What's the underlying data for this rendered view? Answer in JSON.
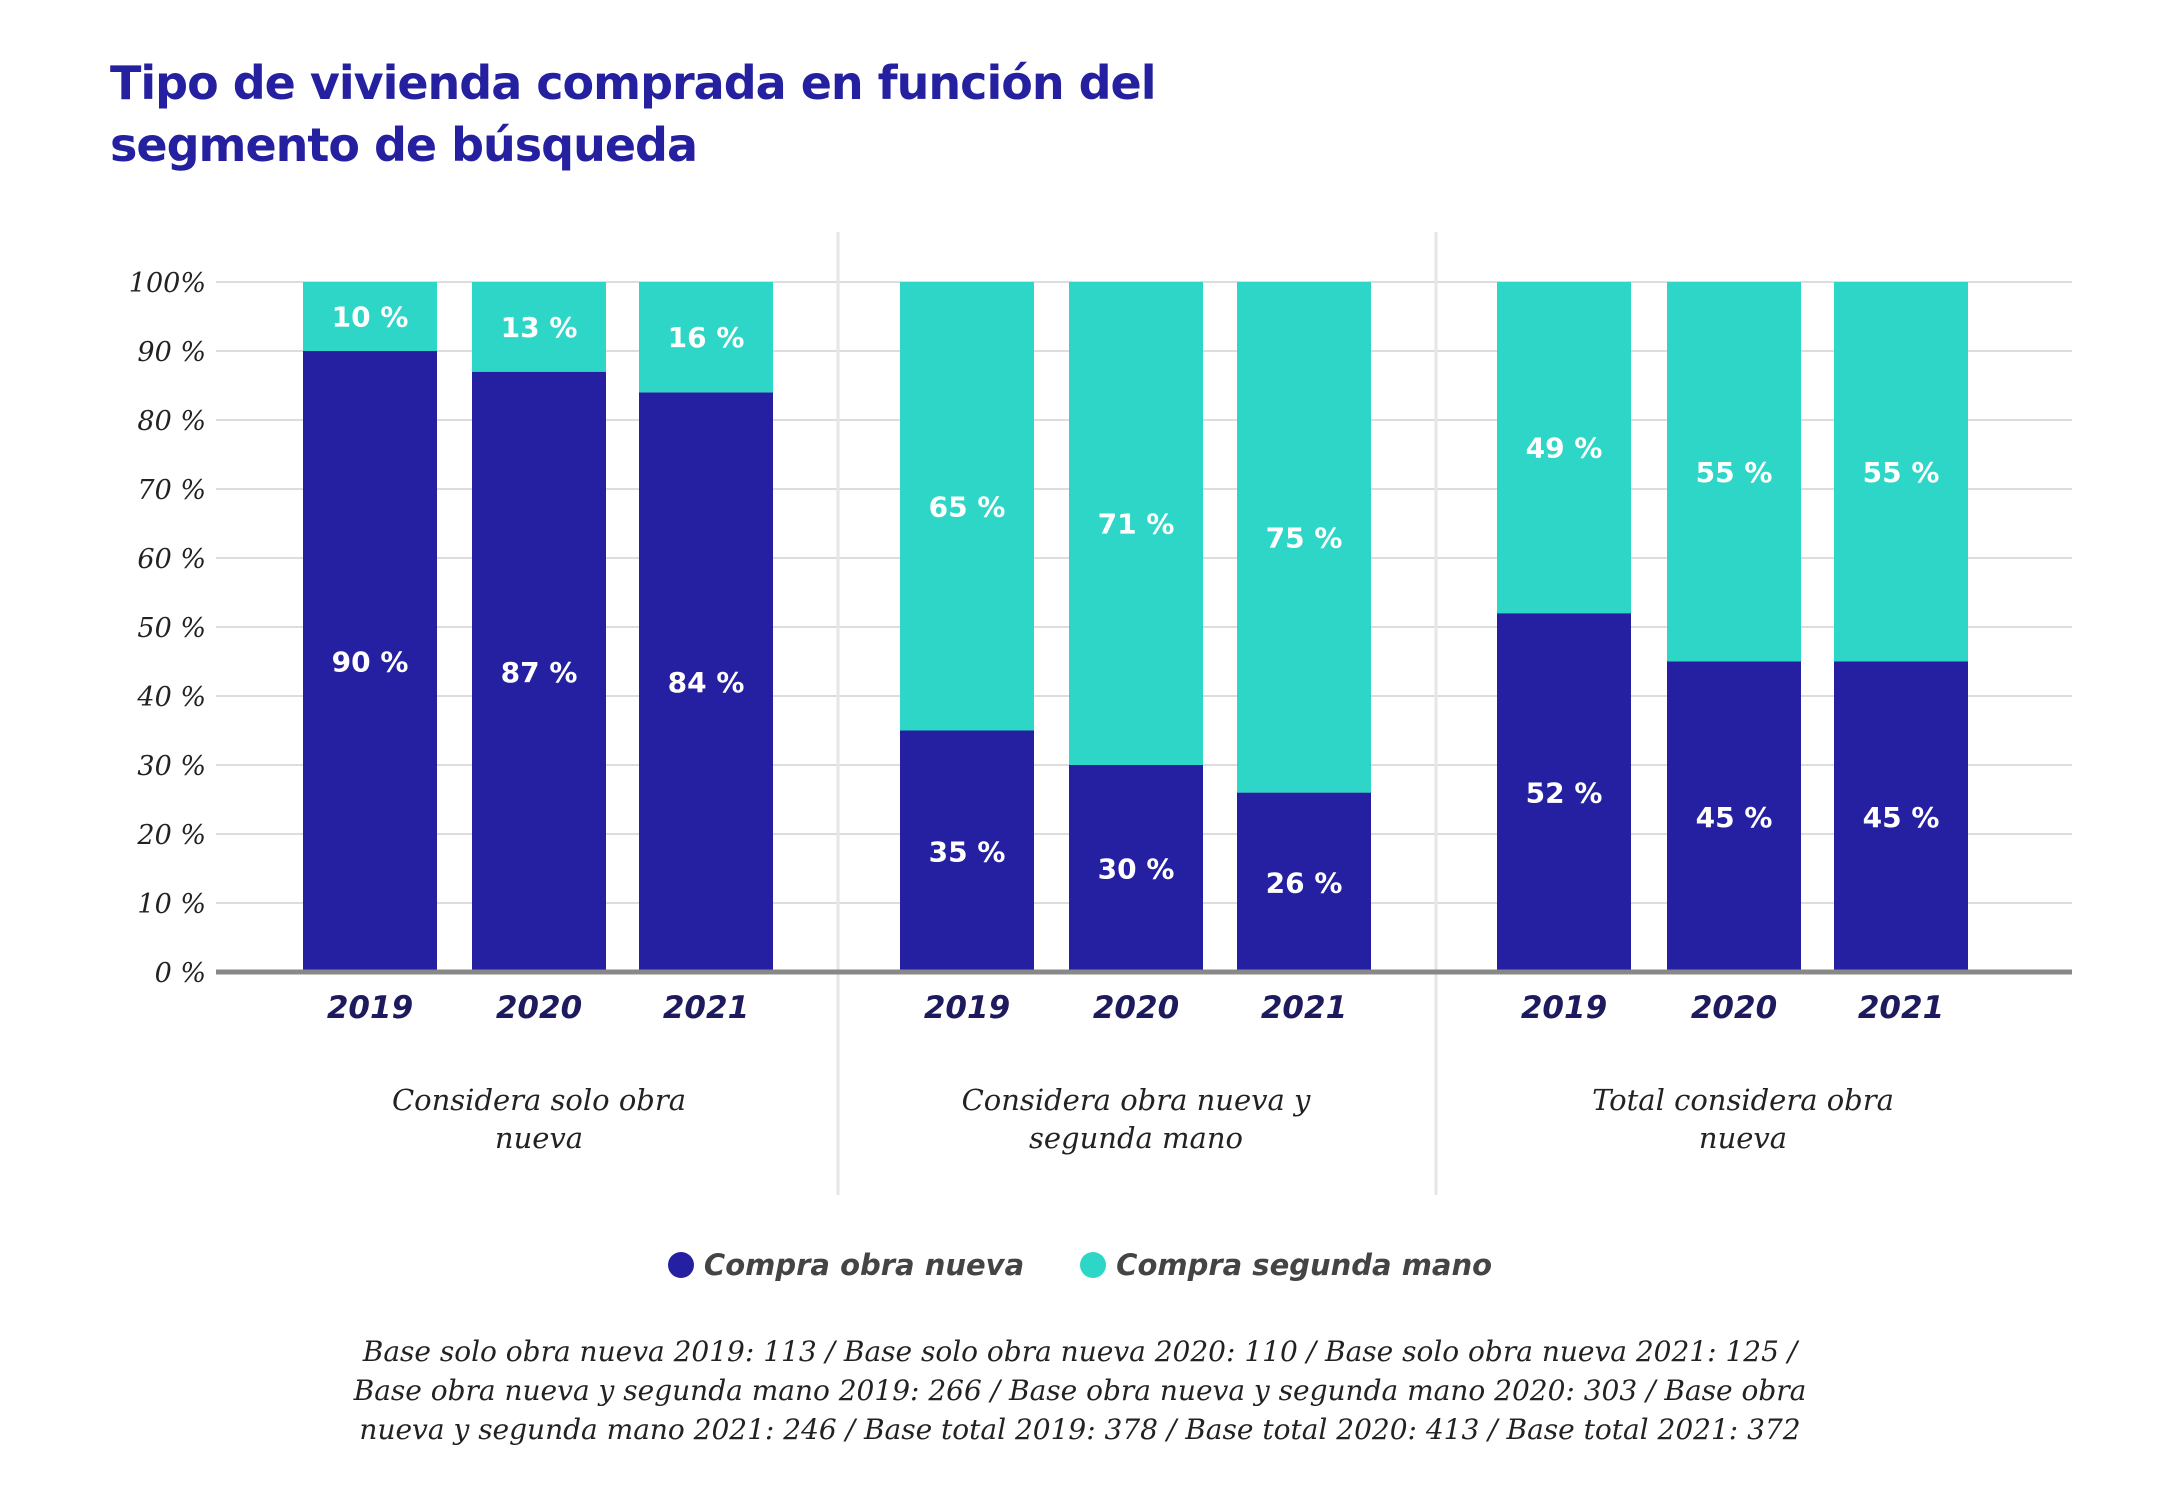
{
  "title": "Tipo de vivienda comprada en función del segmento de búsqueda",
  "colors": {
    "new": "#2520a2",
    "second": "#2dd6c6",
    "grid": "#dddddd",
    "axis": "#888888",
    "title": "#2420a0"
  },
  "legend": [
    {
      "label": "Compra obra nueva",
      "color": "#2520a2"
    },
    {
      "label": "Compra segunda mano",
      "color": "#2dd6c6"
    }
  ],
  "footnote": "Base solo obra nueva 2019: 113 / Base solo obra nueva 2020: 110 / Base solo obra nueva 2021: 125 / Base obra nueva y segunda mano 2019: 266 / Base obra nueva y segunda mano 2020: 303 / Base obra nueva y segunda mano 2021: 246 / Base total 2019: 378 / Base total 2020: 413 / Base total 2021: 372",
  "chart_data": {
    "type": "bar",
    "stacked": true,
    "ylim": [
      0,
      100
    ],
    "yticks": [
      "0 %",
      "10 %",
      "20 %",
      "30 %",
      "40 %",
      "50 %",
      "60 %",
      "70 %",
      "80 %",
      "90 %",
      "100%"
    ],
    "grid": true,
    "legend_position": "bottom",
    "groups": [
      {
        "label_lines": [
          "Considera solo obra",
          "nueva"
        ],
        "categories": [
          "2019",
          "2020",
          "2021"
        ],
        "series": [
          {
            "name": "Compra obra nueva",
            "values": [
              90,
              87,
              84
            ],
            "labels": [
              "90 %",
              "87 %",
              "84 %"
            ]
          },
          {
            "name": "Compra segunda mano",
            "values": [
              10,
              13,
              16
            ],
            "labels": [
              "10 %",
              "13 %",
              "16 %"
            ]
          }
        ]
      },
      {
        "label_lines": [
          "Considera obra nueva y",
          "segunda mano"
        ],
        "categories": [
          "2019",
          "2020",
          "2021"
        ],
        "series": [
          {
            "name": "Compra obra nueva",
            "values": [
              35,
              30,
              26
            ],
            "labels": [
              "35 %",
              "30 %",
              "26 %"
            ]
          },
          {
            "name": "Compra segunda mano",
            "values": [
              65,
              71,
              75
            ],
            "labels": [
              "65 %",
              "71 %",
              "75 %"
            ]
          }
        ]
      },
      {
        "label_lines": [
          "Total considera obra",
          "nueva"
        ],
        "categories": [
          "2019",
          "2020",
          "2021"
        ],
        "series": [
          {
            "name": "Compra obra nueva",
            "values": [
              52,
              45,
              45
            ],
            "labels": [
              "52 %",
              "45 %",
              "45 %"
            ]
          },
          {
            "name": "Compra segunda mano",
            "values": [
              49,
              55,
              55
            ],
            "labels": [
              "49 %",
              "55 %",
              "55 %"
            ]
          }
        ]
      }
    ]
  }
}
